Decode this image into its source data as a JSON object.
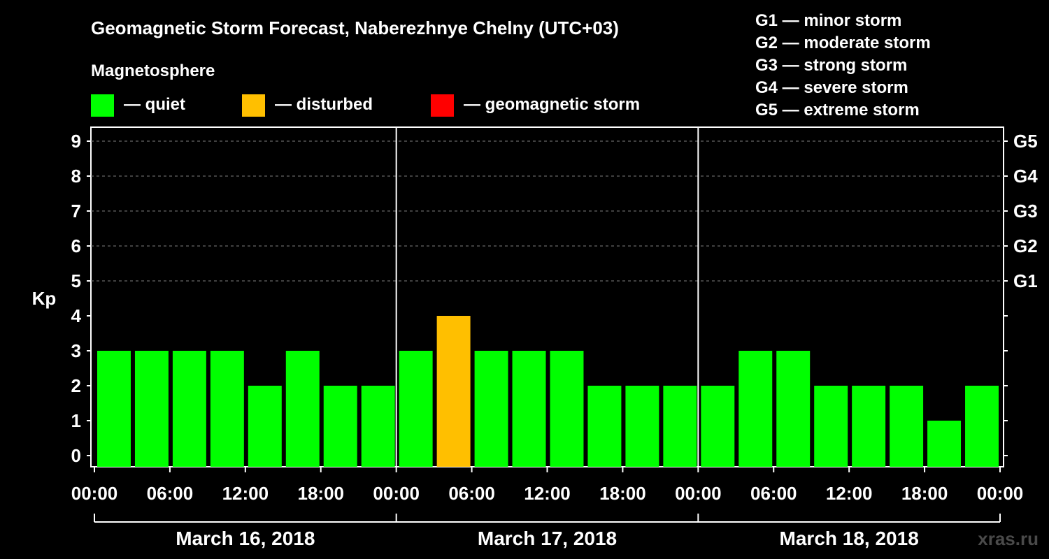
{
  "chart_data": {
    "type": "bar",
    "title": "Geomagnetic Storm Forecast, Naberezhnye Chelny (UTC+03)",
    "ylabel": "Kp",
    "ylim": [
      0,
      9
    ],
    "yticks": [
      "0",
      "1",
      "2",
      "3",
      "4",
      "5",
      "6",
      "7",
      "8",
      "9"
    ],
    "right_ticks": [
      {
        "kp": 5,
        "label": "G1"
      },
      {
        "kp": 6,
        "label": "G2"
      },
      {
        "kp": 7,
        "label": "G3"
      },
      {
        "kp": 8,
        "label": "G4"
      },
      {
        "kp": 9,
        "label": "G5"
      }
    ],
    "grid": "dashed horizontal at Kp 5-9",
    "xticks": [
      "00:00",
      "06:00",
      "12:00",
      "18:00",
      "00:00",
      "06:00",
      "12:00",
      "18:00",
      "00:00",
      "06:00",
      "12:00",
      "18:00",
      "00:00"
    ],
    "days": [
      "March 16, 2018",
      "March 17, 2018",
      "March 18, 2018"
    ],
    "values": [
      3,
      3,
      3,
      3,
      2,
      3,
      2,
      2,
      3,
      4,
      3,
      3,
      3,
      2,
      2,
      2,
      2,
      3,
      3,
      2,
      2,
      2,
      1,
      2
    ],
    "colors": {
      "quiet": "#00ff00",
      "disturbed": "#ffbf00",
      "storm": "#ff0000",
      "background": "#000000",
      "foreground": "#ffffff"
    },
    "legend": {
      "title": "Magnetosphere",
      "items": [
        {
          "key": "quiet",
          "label": "— quiet"
        },
        {
          "key": "disturbed",
          "label": "— disturbed"
        },
        {
          "key": "storm",
          "label": "— geomagnetic storm"
        }
      ]
    },
    "storm_scale": [
      "G1 — minor storm",
      "G2 — moderate storm",
      "G3 — strong storm",
      "G4 — severe storm",
      "G5 — extreme storm"
    ],
    "watermark": "xras.ru"
  }
}
